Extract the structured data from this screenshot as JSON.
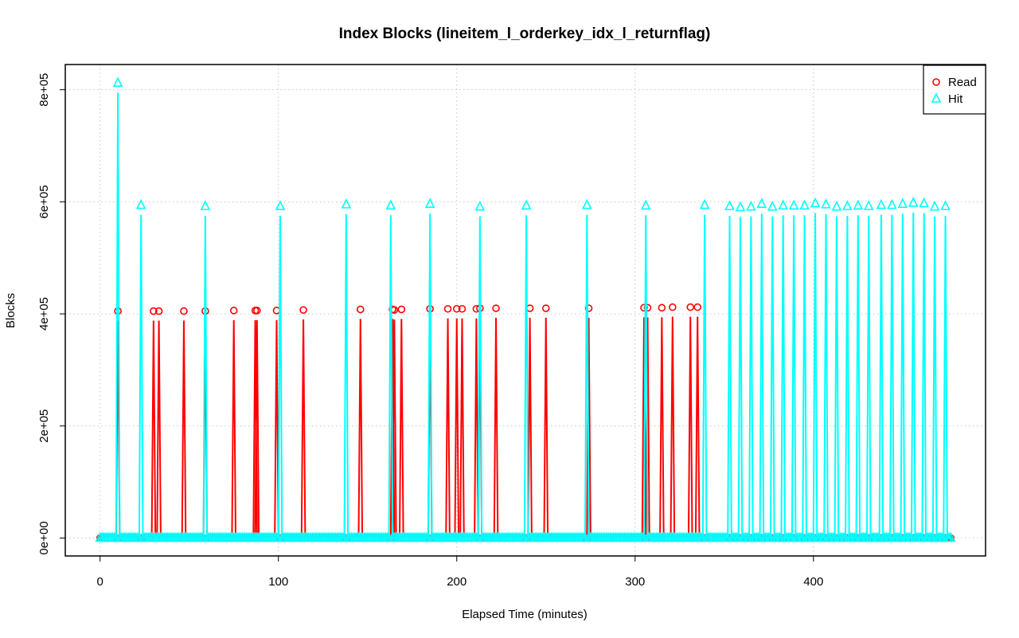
{
  "chart_data": {
    "type": "line",
    "title": "Index Blocks (lineitem_l_orderkey_idx_l_returnflag)",
    "xlabel": "Elapsed Time (minutes)",
    "ylabel": "Blocks",
    "xlim": [
      -19.5,
      496.5
    ],
    "ylim": [
      -32000,
      845000
    ],
    "xticks": [
      0,
      100,
      200,
      300,
      400
    ],
    "xtick_labels": [
      "0",
      "100",
      "200",
      "300",
      "400"
    ],
    "yticks": [
      0,
      200000,
      400000,
      600000,
      800000
    ],
    "ytick_labels": [
      "0e+00",
      "2e+05",
      "4e+05",
      "6e+05",
      "8e+05"
    ],
    "grid": true,
    "legend_position": "top-right",
    "x_end": 477,
    "series": [
      {
        "name": "Read",
        "color": "#ff0000",
        "marker": "circle",
        "spikes": [
          [
            10,
            405000
          ],
          [
            30,
            405000
          ],
          [
            33,
            405000
          ],
          [
            47,
            405000
          ],
          [
            59,
            405000
          ],
          [
            75,
            406000
          ],
          [
            87,
            406000
          ],
          [
            88,
            406000
          ],
          [
            99,
            406000
          ],
          [
            114,
            407000
          ],
          [
            146,
            408000
          ],
          [
            164,
            408000
          ],
          [
            165,
            407000
          ],
          [
            169,
            408000
          ],
          [
            185,
            409000
          ],
          [
            195,
            409000
          ],
          [
            200,
            409000
          ],
          [
            203,
            409000
          ],
          [
            211,
            409000
          ],
          [
            213,
            410000
          ],
          [
            222,
            410000
          ],
          [
            241,
            410000
          ],
          [
            250,
            410000
          ],
          [
            274,
            410000
          ],
          [
            305,
            411000
          ],
          [
            307,
            411000
          ],
          [
            315,
            411000
          ],
          [
            321,
            412000
          ],
          [
            331,
            412000
          ],
          [
            335,
            412000
          ]
        ]
      },
      {
        "name": "Hit",
        "color": "#00ffff",
        "marker": "triangle",
        "spikes": [
          [
            10,
            812000
          ],
          [
            23,
            594000
          ],
          [
            59,
            592000
          ],
          [
            101,
            592000
          ],
          [
            138,
            595000
          ],
          [
            163,
            593000
          ],
          [
            185,
            596000
          ],
          [
            213,
            591000
          ],
          [
            239,
            593000
          ],
          [
            273,
            594000
          ],
          [
            306,
            593000
          ],
          [
            339,
            594000
          ],
          [
            353,
            592000
          ],
          [
            359,
            590000
          ],
          [
            365,
            591000
          ],
          [
            371,
            596000
          ],
          [
            377,
            591000
          ],
          [
            383,
            593000
          ],
          [
            389,
            593000
          ],
          [
            395,
            593000
          ],
          [
            401,
            597000
          ],
          [
            407,
            595000
          ],
          [
            413,
            591000
          ],
          [
            419,
            592000
          ],
          [
            425,
            593000
          ],
          [
            431,
            592000
          ],
          [
            438,
            594000
          ],
          [
            444,
            594000
          ],
          [
            450,
            596000
          ],
          [
            456,
            598000
          ],
          [
            462,
            597000
          ],
          [
            468,
            591000
          ],
          [
            474,
            592000
          ]
        ]
      }
    ]
  }
}
